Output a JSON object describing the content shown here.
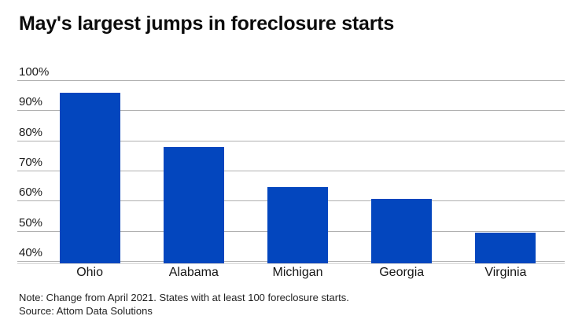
{
  "chart_data": {
    "type": "bar",
    "title": "May's largest jumps in foreclosure starts",
    "categories": [
      "Ohio",
      "Alabama",
      "Michigan",
      "Georgia",
      "Virginia"
    ],
    "values": [
      96,
      78,
      65,
      61,
      50
    ],
    "xlabel": "",
    "ylabel": "",
    "ylim": [
      40,
      100
    ],
    "ytick_labels": [
      "100%",
      "90%",
      "80%",
      "70%",
      "60%",
      "50%",
      "40%"
    ],
    "grid": true,
    "legend": "none",
    "bar_color": "#0346BE",
    "gridline_color": "#b0b0b0"
  },
  "footer": {
    "note": "Note: Change from April 2021. States with at least 100 foreclosure starts.",
    "source": "Source: Attom Data Solutions"
  }
}
